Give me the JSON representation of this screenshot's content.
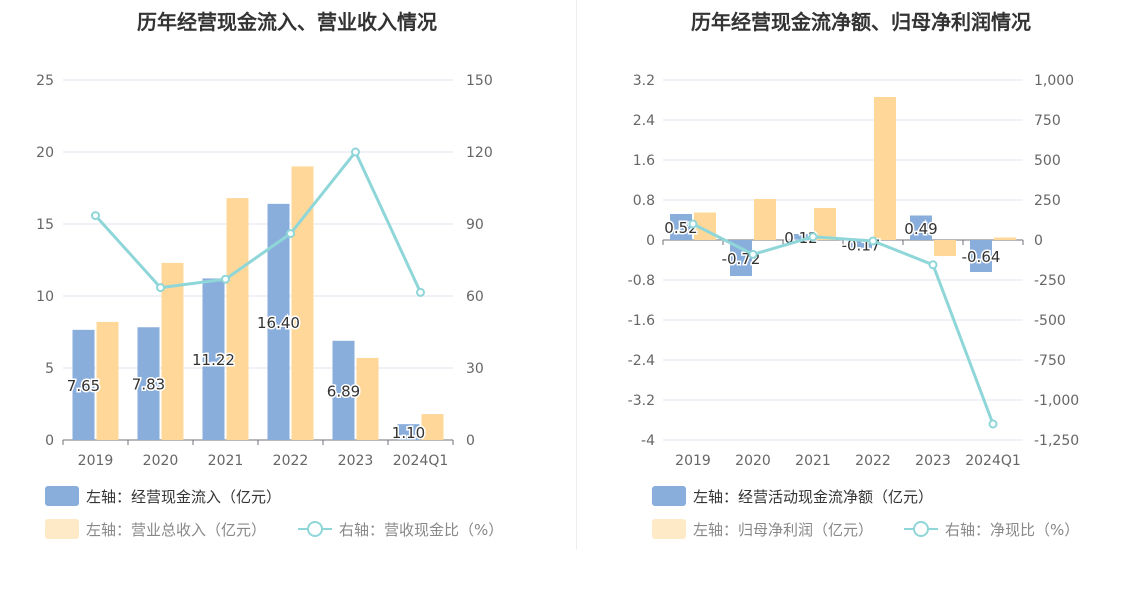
{
  "chart_data": [
    {
      "type": "bar",
      "title": "历年经营现金流入、营业收入情况",
      "categories": [
        "2019",
        "2020",
        "2021",
        "2022",
        "2023",
        "2024Q1"
      ],
      "series": [
        {
          "name": "左轴：经营现金流入（亿元）",
          "axis": "left",
          "type": "bar",
          "color": "#8aaedc",
          "values": [
            7.65,
            7.83,
            11.22,
            16.4,
            6.89,
            1.1
          ],
          "labels": [
            "7.65",
            "7.83",
            "11.22",
            "16.40",
            "6.89",
            "1.10"
          ]
        },
        {
          "name": "左轴：营业总收入（亿元）",
          "axis": "left",
          "type": "bar",
          "color": "#ffd899",
          "values": [
            8.2,
            12.3,
            16.8,
            19.0,
            5.7,
            1.8
          ]
        },
        {
          "name": "右轴：营收现金比（%）",
          "axis": "right",
          "type": "line",
          "color": "#8fd6d9",
          "values": [
            93.5,
            63.5,
            67,
            86,
            120,
            61.5
          ]
        }
      ],
      "y_left": {
        "min": 0,
        "max": 25,
        "ticks": [
          "0",
          "5",
          "10",
          "15",
          "20",
          "25"
        ]
      },
      "y_right": {
        "min": 0,
        "max": 150,
        "ticks": [
          "0",
          "30",
          "60",
          "90",
          "120",
          "150"
        ]
      },
      "grid": true,
      "legend_position": "bottom"
    },
    {
      "type": "bar",
      "title": "历年经营现金流净额、归母净利润情况",
      "categories": [
        "2019",
        "2020",
        "2021",
        "2022",
        "2023",
        "2024Q1"
      ],
      "series": [
        {
          "name": "左轴：经营活动现金流净额（亿元）",
          "axis": "left",
          "type": "bar",
          "color": "#8aaedc",
          "values": [
            0.52,
            -0.72,
            0.12,
            -0.17,
            0.49,
            -0.64
          ],
          "labels": [
            "0.52",
            "-0.72",
            "0.12",
            "-0.17",
            "0.49",
            "-0.64"
          ]
        },
        {
          "name": "左轴：归母净利润（亿元）",
          "axis": "left",
          "type": "bar",
          "color": "#ffd899",
          "values": [
            0.55,
            0.82,
            0.64,
            2.86,
            -0.32,
            0.05
          ]
        },
        {
          "name": "右轴：净现比（%）",
          "axis": "right",
          "type": "line",
          "color": "#8fd6d9",
          "values": [
            100,
            -90,
            20,
            -6,
            -155,
            -1150
          ]
        }
      ],
      "y_left": {
        "min": -4,
        "max": 3.2,
        "ticks": [
          "-4",
          "-3.2",
          "-2.4",
          "-1.6",
          "-0.8",
          "0",
          "0.8",
          "1.6",
          "2.4",
          "3.2"
        ]
      },
      "y_right": {
        "min": -1250,
        "max": 1000,
        "ticks": [
          "-1,250",
          "-1,000",
          "-750",
          "-500",
          "-250",
          "0",
          "250",
          "500",
          "750",
          "1,000"
        ]
      },
      "grid": true,
      "legend_position": "bottom"
    }
  ]
}
